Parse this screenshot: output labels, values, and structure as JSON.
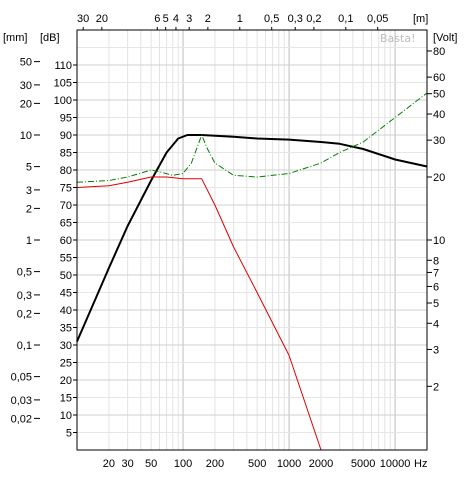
{
  "chart_data": {
    "type": "line",
    "title": "",
    "watermark": "Basta!",
    "x_axis": {
      "scale": "log",
      "range": [
        10,
        20000
      ],
      "ticks": [
        {
          "value": 20,
          "label": "20"
        },
        {
          "value": 30,
          "label": "30"
        },
        {
          "value": 50,
          "label": "50"
        },
        {
          "value": 100,
          "label": "100"
        },
        {
          "value": 200,
          "label": "200"
        },
        {
          "value": 500,
          "label": "500"
        },
        {
          "value": 1000,
          "label": "1000"
        },
        {
          "value": 2000,
          "label": "2000"
        },
        {
          "value": 5000,
          "label": "5000"
        },
        {
          "value": 10000,
          "label": "10000"
        }
      ],
      "unit": "Hz"
    },
    "wavelength_axis": {
      "unit": "[m]",
      "ticks": [
        {
          "value": 30,
          "label": "30"
        },
        {
          "value": 20,
          "label": "20"
        },
        {
          "value": 6,
          "label": "6"
        },
        {
          "value": 5,
          "label": "5"
        },
        {
          "value": 4,
          "label": "4"
        },
        {
          "value": 3,
          "label": "3"
        },
        {
          "value": 2,
          "label": "2"
        },
        {
          "value": 1,
          "label": "1"
        },
        {
          "value": 0.5,
          "label": "0,5"
        },
        {
          "value": 0.3,
          "label": "0,3"
        },
        {
          "value": 0.2,
          "label": "0,2"
        },
        {
          "value": 0.1,
          "label": "0,1"
        },
        {
          "value": 0.05,
          "label": "0,05"
        }
      ]
    },
    "db_axis": {
      "unit": "[dB]",
      "range": [
        0,
        120
      ],
      "ticks": [
        {
          "value": 5,
          "label": "5"
        },
        {
          "value": 10,
          "label": "10"
        },
        {
          "value": 15,
          "label": "15"
        },
        {
          "value": 20,
          "label": "20"
        },
        {
          "value": 25,
          "label": "25"
        },
        {
          "value": 30,
          "label": "30"
        },
        {
          "value": 35,
          "label": "35"
        },
        {
          "value": 40,
          "label": "40"
        },
        {
          "value": 45,
          "label": "45"
        },
        {
          "value": 50,
          "label": "50"
        },
        {
          "value": 55,
          "label": "55"
        },
        {
          "value": 60,
          "label": "60"
        },
        {
          "value": 65,
          "label": "65"
        },
        {
          "value": 70,
          "label": "70"
        },
        {
          "value": 75,
          "label": "75"
        },
        {
          "value": 80,
          "label": "80"
        },
        {
          "value": 85,
          "label": "85"
        },
        {
          "value": 90,
          "label": "90"
        },
        {
          "value": 95,
          "label": "95"
        },
        {
          "value": 100,
          "label": "100"
        },
        {
          "value": 105,
          "label": "105"
        },
        {
          "value": 110,
          "label": "110"
        }
      ]
    },
    "mm_axis": {
      "unit": "[mm]",
      "scale": "log",
      "ticks": [
        {
          "value": 50,
          "label": "50"
        },
        {
          "value": 30,
          "label": "30"
        },
        {
          "value": 20,
          "label": "20"
        },
        {
          "value": 10,
          "label": "10"
        },
        {
          "value": 5,
          "label": "5"
        },
        {
          "value": 3,
          "label": "3"
        },
        {
          "value": 2,
          "label": "2"
        },
        {
          "value": 1,
          "label": "1"
        },
        {
          "value": 0.5,
          "label": "0,5"
        },
        {
          "value": 0.3,
          "label": "0,3"
        },
        {
          "value": 0.2,
          "label": "0,2"
        },
        {
          "value": 0.1,
          "label": "0,1"
        },
        {
          "value": 0.05,
          "label": "0,05"
        },
        {
          "value": 0.03,
          "label": "0,03"
        },
        {
          "value": 0.02,
          "label": "0,02"
        }
      ]
    },
    "volt_axis": {
      "unit": "[Volt]",
      "scale": "log",
      "ticks": [
        {
          "value": 80,
          "label": "80"
        },
        {
          "value": 60,
          "label": "60"
        },
        {
          "value": 50,
          "label": "50"
        },
        {
          "value": 40,
          "label": "40"
        },
        {
          "value": 30,
          "label": "30"
        },
        {
          "value": 20,
          "label": "20"
        },
        {
          "value": 10,
          "label": "10"
        },
        {
          "value": 8,
          "label": "8"
        },
        {
          "value": 7,
          "label": "7"
        },
        {
          "value": 6,
          "label": "6"
        },
        {
          "value": 5,
          "label": "5"
        },
        {
          "value": 4,
          "label": "4"
        },
        {
          "value": 3,
          "label": "3"
        },
        {
          "value": 2,
          "label": "2"
        }
      ]
    },
    "grid": true,
    "series": [
      {
        "color": "#000000",
        "style": "solid",
        "points": [
          [
            10,
            31
          ],
          [
            20,
            52
          ],
          [
            30,
            64
          ],
          [
            50,
            77
          ],
          [
            70,
            85
          ],
          [
            90,
            89
          ],
          [
            110,
            90
          ],
          [
            150,
            90
          ],
          [
            300,
            89.5
          ],
          [
            500,
            89
          ],
          [
            1000,
            88.7
          ],
          [
            2000,
            88
          ],
          [
            3000,
            87.5
          ],
          [
            5000,
            86
          ],
          [
            10000,
            83
          ],
          [
            20000,
            81
          ]
        ]
      },
      {
        "color": "#e00000",
        "style": "solid",
        "points": [
          [
            10,
            75
          ],
          [
            20,
            75.5
          ],
          [
            30,
            76.5
          ],
          [
            50,
            78
          ],
          [
            70,
            78
          ],
          [
            100,
            77.5
          ],
          [
            150,
            77.5
          ],
          [
            200,
            70
          ],
          [
            300,
            58
          ],
          [
            500,
            45
          ],
          [
            1000,
            27
          ],
          [
            2000,
            0
          ],
          [
            20000,
            0
          ]
        ]
      },
      {
        "color": "#008000",
        "style": "dashdot",
        "points": [
          [
            10,
            76.5
          ],
          [
            20,
            77
          ],
          [
            30,
            78
          ],
          [
            50,
            80
          ],
          [
            60,
            79.5
          ],
          [
            80,
            78.5
          ],
          [
            100,
            79
          ],
          [
            120,
            82
          ],
          [
            150,
            90
          ],
          [
            170,
            86
          ],
          [
            200,
            82
          ],
          [
            300,
            78.5
          ],
          [
            500,
            78
          ],
          [
            1000,
            79
          ],
          [
            2000,
            82
          ],
          [
            3000,
            85
          ],
          [
            5000,
            88
          ],
          [
            10000,
            95
          ],
          [
            20000,
            102
          ]
        ]
      }
    ]
  }
}
